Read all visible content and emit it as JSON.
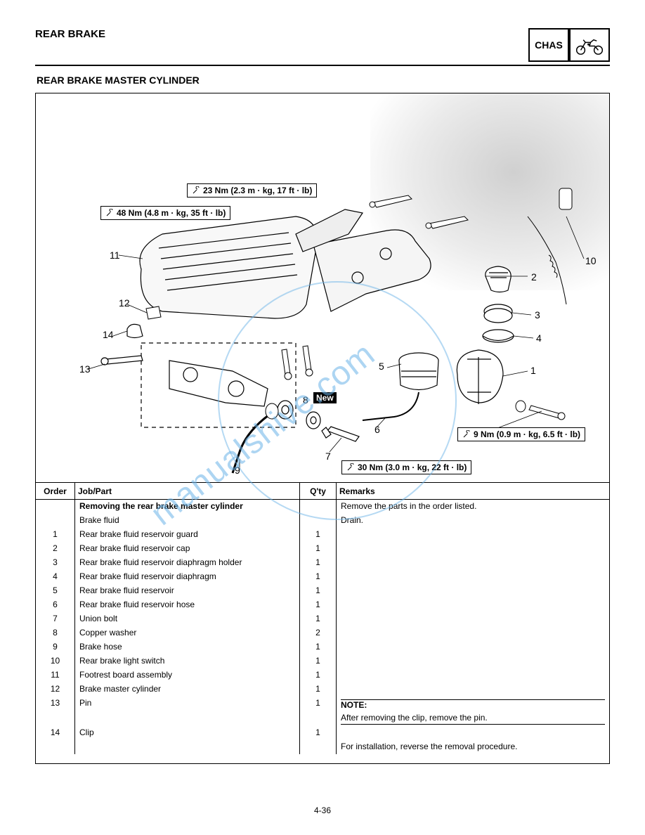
{
  "header": {
    "title": "REAR BRAKE",
    "chassis_label": "CHAS"
  },
  "section_title": "REAR BRAKE MASTER CYLINDER",
  "torque_specs": {
    "t1": "23 Nm (2.3 m · kg, 17 ft · lb)",
    "t2": "48 Nm (4.8 m · kg, 35 ft · lb)",
    "t3": "9 Nm (0.9 m · kg, 6.5 ft · lb)",
    "t4": "30 Nm (3.0 m · kg, 22 ft · lb)"
  },
  "callouts": {
    "c1": "1",
    "c2": "2",
    "c3": "3",
    "c4": "4",
    "c5": "5",
    "c6": "6",
    "c7": "7",
    "c8": "8",
    "c9": "9",
    "c10": "10",
    "c11": "11",
    "c12": "12",
    "c13": "13",
    "c14": "14"
  },
  "new_badge": "New",
  "table": {
    "headers": {
      "order": "Order",
      "job": "Job/Part",
      "qty": "Q'ty",
      "remarks": "Remarks"
    },
    "rows": [
      {
        "order": "",
        "job": "Removing the rear brake master cylinder",
        "qty": "",
        "remarks": "Remove the parts in the order listed."
      },
      {
        "order": "",
        "job": "Brake fluid",
        "qty": "",
        "remarks": "Drain."
      },
      {
        "order": "1",
        "job": "Rear brake fluid reservoir guard",
        "qty": "1",
        "remarks": ""
      },
      {
        "order": "2",
        "job": "Rear brake fluid reservoir cap",
        "qty": "1",
        "remarks": ""
      },
      {
        "order": "3",
        "job": "Rear brake fluid reservoir diaphragm holder",
        "qty": "1",
        "remarks": ""
      },
      {
        "order": "4",
        "job": "Rear brake fluid reservoir diaphragm",
        "qty": "1",
        "remarks": ""
      },
      {
        "order": "5",
        "job": "Rear brake fluid reservoir",
        "qty": "1",
        "remarks": ""
      },
      {
        "order": "6",
        "job": "Rear brake fluid reservoir hose",
        "qty": "1",
        "remarks": ""
      },
      {
        "order": "7",
        "job": "Union bolt",
        "qty": "1",
        "remarks": ""
      },
      {
        "order": "8",
        "job": "Copper washer",
        "qty": "2",
        "remarks": ""
      },
      {
        "order": "9",
        "job": "Brake hose",
        "qty": "1",
        "remarks": ""
      },
      {
        "order": "10",
        "job": "Rear brake light switch",
        "qty": "1",
        "remarks": ""
      },
      {
        "order": "11",
        "job": "Footrest board assembly",
        "qty": "1",
        "remarks": ""
      },
      {
        "order": "12",
        "job": "Brake master cylinder",
        "qty": "1",
        "remarks": ""
      },
      {
        "order": "13",
        "job": "Pin",
        "qty": "1",
        "remarks": "NOTE:"
      },
      {
        "order": "",
        "job": "",
        "qty": "",
        "remarks": "After removing the clip, remove the pin."
      },
      {
        "order": "14",
        "job": "Clip",
        "qty": "1",
        "remarks": ""
      },
      {
        "order": "",
        "job": "",
        "qty": "",
        "remarks": "For installation, reverse the removal procedure."
      }
    ]
  },
  "page_number": "4-36",
  "watermark": "manualshive.com"
}
